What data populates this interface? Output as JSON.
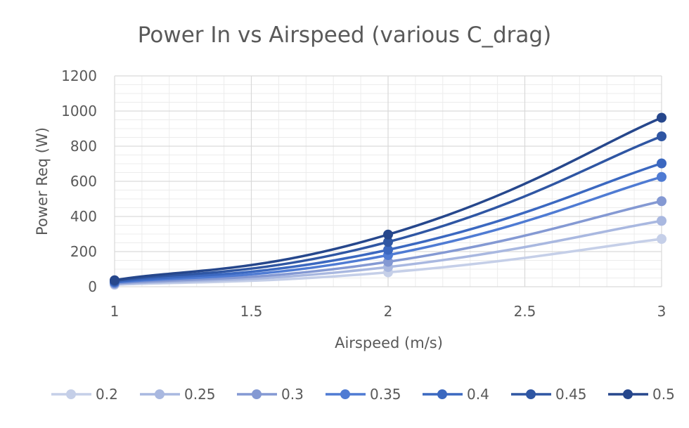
{
  "chart_data": {
    "type": "line",
    "title": "Power In vs Airspeed (various C_drag)",
    "xlabel": "Airspeed (m/s)",
    "ylabel": "Power Req (W)",
    "x": [
      1,
      2,
      3
    ],
    "xlim": [
      1,
      3
    ],
    "ylim": [
      0,
      1200
    ],
    "x_ticks": [
      "1",
      "1.5",
      "2",
      "2.5",
      "3"
    ],
    "y_ticks": [
      "0",
      "200",
      "400",
      "600",
      "800",
      "1000",
      "1200"
    ],
    "x_tick_values": [
      1,
      1.5,
      2,
      2.5,
      3
    ],
    "y_tick_values": [
      0,
      200,
      400,
      600,
      800,
      1000,
      1200
    ],
    "grid": true,
    "legend_position": "bottom",
    "smooth": true,
    "series": [
      {
        "name": "0.2",
        "values": [
          11,
          82,
          272
        ],
        "color": "#c5cfe8"
      },
      {
        "name": "0.25",
        "values": [
          15,
          112,
          375
        ],
        "color": "#a9b8e0"
      },
      {
        "name": "0.3",
        "values": [
          19,
          142,
          487
        ],
        "color": "#8499d3"
      },
      {
        "name": "0.35",
        "values": [
          24,
          180,
          625
        ],
        "color": "#4f7bd3"
      },
      {
        "name": "0.4",
        "values": [
          28,
          210,
          702
        ],
        "color": "#3b68c0"
      },
      {
        "name": "0.45",
        "values": [
          33,
          255,
          856
        ],
        "color": "#2f56a3"
      },
      {
        "name": "0.5",
        "values": [
          37,
          297,
          962
        ],
        "color": "#26478c"
      }
    ]
  }
}
